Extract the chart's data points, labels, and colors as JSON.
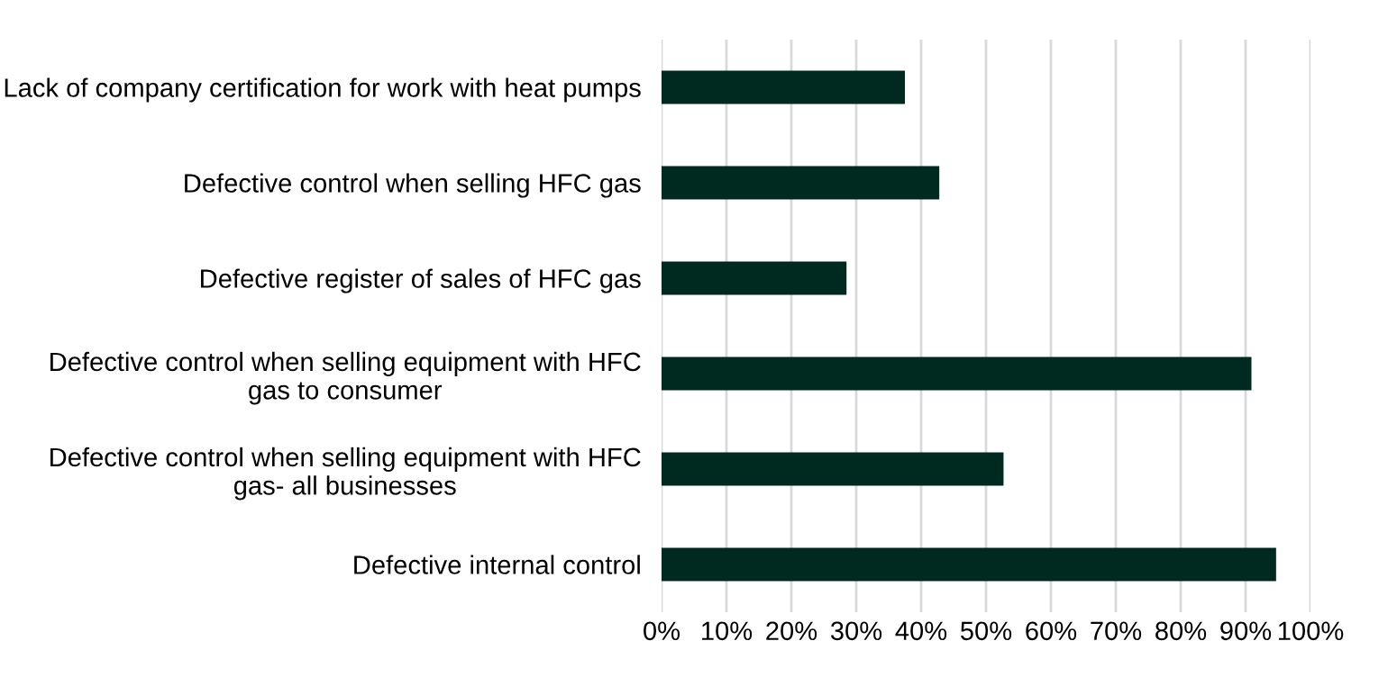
{
  "chart_data": {
    "type": "bar",
    "orientation": "horizontal",
    "categories": [
      "Lack of company certification for work with heat pumps",
      "Defective control when selling HFC gas",
      "Defective register of sales of HFC gas",
      "Defective control when selling equipment with HFC gas to consumer",
      "Defective control when selling equipment with HFC gas- all businesses",
      "Defective internal control"
    ],
    "values": [
      37.5,
      42.8,
      28.5,
      90.9,
      52.7,
      94.7
    ],
    "color": "#00291f",
    "xlim": [
      0,
      100
    ],
    "xticks": [
      {
        "value": 0,
        "label": "0%"
      },
      {
        "value": 10,
        "label": "10%"
      },
      {
        "value": 20,
        "label": "20%"
      },
      {
        "value": 30,
        "label": "30%"
      },
      {
        "value": 40,
        "label": "40%"
      },
      {
        "value": 50,
        "label": "50%"
      },
      {
        "value": 60,
        "label": "60%"
      },
      {
        "value": 70,
        "label": "70%"
      },
      {
        "value": 80,
        "label": "80%"
      },
      {
        "value": 90,
        "label": "90%"
      },
      {
        "value": 100,
        "label": "100%"
      }
    ],
    "grid": "x",
    "legend": false
  }
}
